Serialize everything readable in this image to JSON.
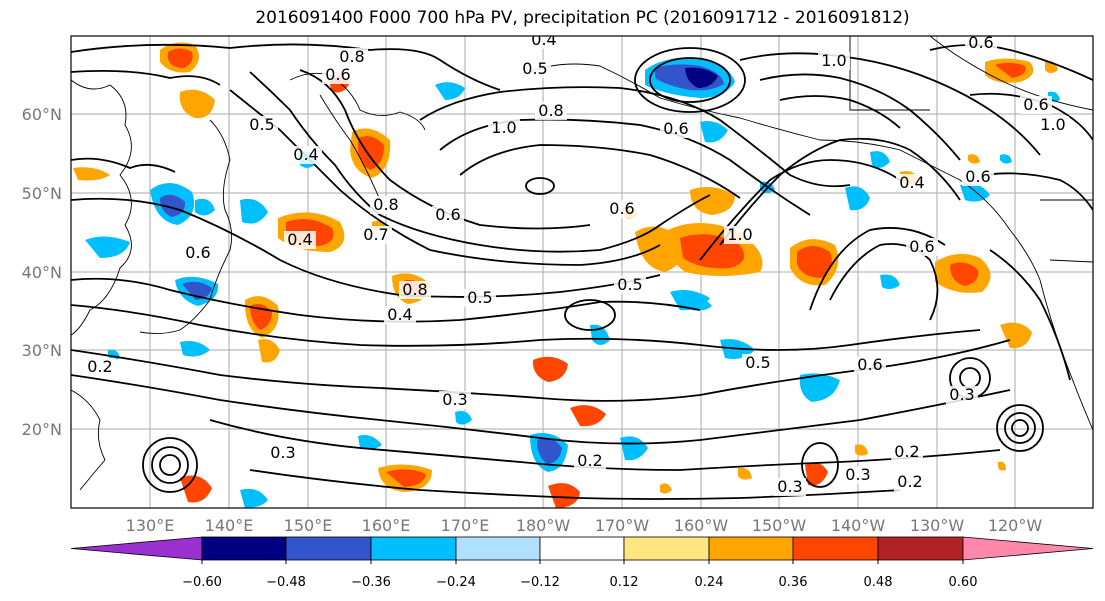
{
  "title": "2016091400 F000 700 hPa PV, precipitation PC (2016091712 - 2016091812)",
  "map": {
    "lat_ticks": [
      "60°N",
      "50°N",
      "40°N",
      "30°N",
      "20°N"
    ],
    "lon_ticks": [
      "130°E",
      "140°E",
      "150°E",
      "160°E",
      "170°E",
      "180°W",
      "170°W",
      "160°W",
      "150°W",
      "140°W",
      "130°W",
      "120°W"
    ],
    "contour_labels": [
      "0.8",
      "0.4",
      "0.6",
      "0.5",
      "0.8",
      "1.0",
      "0.6",
      "1.0",
      "0.6",
      "1.0",
      "0.5",
      "0.5",
      "0.4",
      "0.6",
      "0.8",
      "0.7",
      "0.6",
      "0.6",
      "0.8",
      "0.5",
      "0.4",
      "0.4",
      "0.6",
      "0.6",
      "0.3",
      "0.4",
      "0.2",
      "0.3",
      "0.3",
      "0.2",
      "0.5",
      "0.6",
      "0.3",
      "0.2",
      "0.3",
      "0.2",
      "0.6",
      "1.0"
    ]
  },
  "colorbar": {
    "colors": [
      "#9b30d0",
      "#000080",
      "#3355cc",
      "#00bfff",
      "#b0e0ff",
      "#ffffff",
      "#ffe680",
      "#ffa500",
      "#ff4500",
      "#b22222",
      "#ff88aa"
    ],
    "tick_labels": [
      "−0.60",
      "−0.48",
      "−0.36",
      "−0.24",
      "−0.12",
      "0.12",
      "0.24",
      "0.36",
      "0.48",
      "0.60"
    ]
  }
}
